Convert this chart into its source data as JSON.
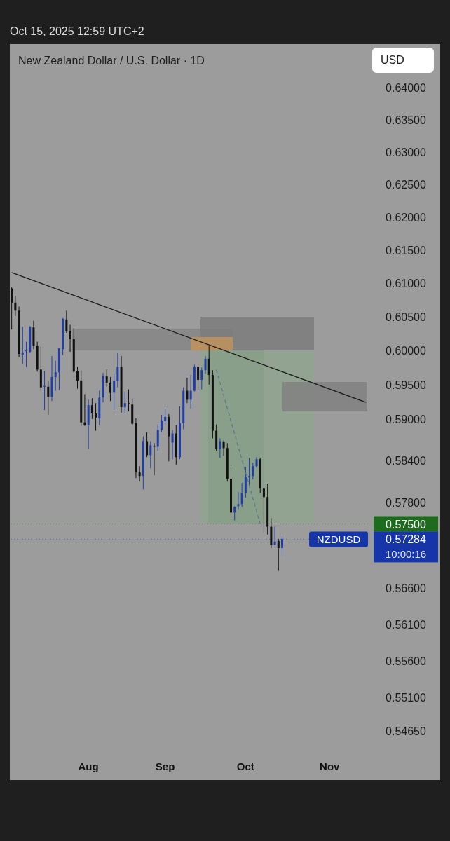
{
  "chart_data": {
    "type": "candlestick",
    "title": "New Zealand Dollar / U.S. Dollar · 1D",
    "annotations": [
      "Oct 15, 2025 12:59 UTC+2",
      "10:00:16",
      "USD"
    ],
    "categories": [
      null,
      null,
      null,
      null,
      null,
      null,
      null,
      null,
      null,
      null,
      null,
      null,
      null,
      null,
      null,
      null,
      null,
      null,
      null,
      null,
      null,
      "Aug",
      null,
      null,
      null,
      null,
      null,
      null,
      null,
      null,
      null,
      null,
      null,
      null,
      null,
      null,
      null,
      null,
      null,
      null,
      null,
      null,
      "Sep",
      null,
      null,
      null,
      null,
      null,
      null,
      null,
      null,
      null,
      null,
      null,
      null,
      null,
      null,
      null,
      null,
      null,
      null,
      null,
      null,
      null,
      "Oct",
      null,
      null,
      null,
      null,
      null,
      null,
      null,
      null,
      null,
      null,
      null,
      null,
      null,
      null,
      null,
      null,
      null,
      null,
      null,
      null,
      null,
      null,
      "Nov",
      null,
      null,
      null,
      null,
      null,
      null,
      null,
      null,
      null,
      null
    ],
    "ohlc": [
      [
        0.6092,
        0.6094,
        0.6031,
        0.6071
      ],
      [
        0.6071,
        0.6081,
        0.6051,
        0.6059
      ],
      [
        0.6059,
        0.6065,
        0.599,
        0.5995
      ],
      [
        0.5994,
        0.6035,
        0.598,
        0.5997
      ],
      [
        0.5999,
        0.6013,
        0.5976,
        0.6
      ],
      [
        0.5998,
        0.6036,
        0.5997,
        0.6035
      ],
      [
        0.6034,
        0.6044,
        0.6002,
        0.6007
      ],
      [
        0.6007,
        0.6013,
        0.5969,
        0.5972
      ],
      [
        0.5972,
        0.6006,
        0.5941,
        0.5946
      ],
      [
        0.5947,
        0.597,
        0.5913,
        0.5948
      ],
      [
        0.5947,
        0.5955,
        0.5906,
        0.5932
      ],
      [
        0.5932,
        0.5992,
        0.5926,
        0.5961
      ],
      [
        0.5961,
        0.5985,
        0.5941,
        0.5968
      ],
      [
        0.5968,
        0.6003,
        0.5942,
        0.6003
      ],
      [
        0.6002,
        0.6048,
        0.5993,
        0.6047
      ],
      [
        0.6046,
        0.6059,
        0.6026,
        0.6028
      ],
      [
        0.6028,
        0.6038,
        0.5998,
        0.6017
      ],
      [
        0.6017,
        0.6033,
        0.5967,
        0.5969
      ],
      [
        0.597,
        0.5976,
        0.5944,
        0.5956
      ],
      [
        0.5956,
        0.5971,
        0.589,
        0.5895
      ],
      [
        0.5895,
        0.5936,
        0.589,
        0.5891
      ],
      [
        0.5891,
        0.5928,
        0.5857,
        0.592
      ],
      [
        0.592,
        0.593,
        0.59,
        0.5908
      ],
      [
        0.5908,
        0.5923,
        0.5883,
        0.5902
      ],
      [
        0.5901,
        0.5941,
        0.5891,
        0.5931
      ],
      [
        0.5931,
        0.5967,
        0.5924,
        0.5962
      ],
      [
        0.5962,
        0.5972,
        0.5947,
        0.5953
      ],
      [
        0.5953,
        0.5961,
        0.5926,
        0.5938
      ],
      [
        0.5938,
        0.5966,
        0.5913,
        0.5955
      ],
      [
        0.5955,
        0.5996,
        0.5946,
        0.5976
      ],
      [
        0.5976,
        0.5992,
        0.5909,
        0.5917
      ],
      [
        0.5917,
        0.594,
        0.5908,
        0.5923
      ],
      [
        0.5923,
        0.5943,
        0.5911,
        0.5922
      ],
      [
        0.5921,
        0.593,
        0.5891,
        0.5893
      ],
      [
        0.5894,
        0.5901,
        0.5815,
        0.5823
      ],
      [
        0.5823,
        0.5832,
        0.581,
        0.5818
      ],
      [
        0.5818,
        0.5875,
        0.5799,
        0.5868
      ],
      [
        0.5868,
        0.5881,
        0.5845,
        0.5848
      ],
      [
        0.5848,
        0.5868,
        0.5829,
        0.5862
      ],
      [
        0.5861,
        0.5865,
        0.5819,
        0.586
      ],
      [
        0.586,
        0.5892,
        0.5854,
        0.5884
      ],
      [
        0.5884,
        0.5906,
        0.5881,
        0.5898
      ],
      [
        0.5897,
        0.5915,
        0.589,
        0.5903
      ],
      [
        0.5903,
        0.5907,
        0.5839,
        0.5875
      ],
      [
        0.5866,
        0.5884,
        0.5842,
        0.5879
      ],
      [
        0.5879,
        0.5891,
        0.5834,
        0.5845
      ],
      [
        0.5845,
        0.5918,
        0.5842,
        0.5894
      ],
      [
        0.5894,
        0.5946,
        0.5885,
        0.5941
      ],
      [
        0.5941,
        0.596,
        0.5923,
        0.5928
      ],
      [
        0.5928,
        0.5964,
        0.5915,
        0.5941
      ],
      [
        0.5941,
        0.5979,
        0.594,
        0.5976
      ],
      [
        0.5976,
        0.5979,
        0.5942,
        0.5957
      ],
      [
        0.5957,
        0.5975,
        0.5943,
        0.5971
      ],
      [
        0.5971,
        0.5992,
        0.5966,
        0.5988
      ],
      [
        0.5988,
        0.6007,
        0.595,
        0.5964
      ],
      [
        0.5964,
        0.5971,
        0.5872,
        0.5883
      ],
      [
        0.5883,
        0.5892,
        0.5854,
        0.5857
      ],
      [
        0.5857,
        0.5872,
        0.5844,
        0.5868
      ],
      [
        0.5867,
        0.5869,
        0.5847,
        0.5858
      ],
      [
        0.5858,
        0.5865,
        0.581,
        0.5814
      ],
      [
        0.5814,
        0.583,
        0.5759,
        0.5766
      ],
      [
        0.5766,
        0.5775,
        0.5755,
        0.5774
      ],
      [
        0.5775,
        0.5795,
        0.5771,
        0.5778
      ],
      [
        0.5778,
        0.5808,
        0.5774,
        0.5794
      ],
      [
        0.5794,
        0.5831,
        0.5787,
        0.5817
      ],
      [
        0.5816,
        0.5844,
        0.5804,
        0.5818
      ],
      [
        0.5818,
        0.5837,
        0.5813,
        0.5832
      ],
      [
        0.5832,
        0.5845,
        0.583,
        0.5842
      ],
      [
        0.5842,
        0.5844,
        0.5794,
        0.58
      ],
      [
        0.58,
        0.5802,
        0.5738,
        0.5788
      ],
      [
        0.5788,
        0.5807,
        0.5735,
        0.5746
      ],
      [
        0.5746,
        0.5758,
        0.5716,
        0.572
      ],
      [
        0.572,
        0.5746,
        0.572,
        0.5725
      ],
      [
        0.5726,
        0.5729,
        0.5684,
        0.5716
      ],
      [
        0.5716,
        0.5733,
        0.5706,
        0.5729
      ],
      null,
      null,
      null,
      null,
      null,
      null,
      null,
      null,
      null,
      null,
      null,
      null,
      null,
      null,
      null,
      null,
      null,
      null,
      null,
      null,
      null,
      null,
      null
    ],
    "colors": [
      "#111111",
      "#111111",
      "#111111",
      "#1f3ea6",
      "#1f3ea6",
      "#1f3ea6",
      "#111111",
      "#111111",
      "#111111",
      "#1f3ea6",
      "#111111",
      "#1f3ea6",
      "#1f3ea6",
      "#1f3ea6",
      "#1f3ea6",
      "#111111",
      "#111111",
      "#111111",
      "#111111",
      "#111111",
      "#111111",
      "#1f3ea6",
      "#111111",
      "#111111",
      "#1f3ea6",
      "#1f3ea6",
      "#111111",
      "#111111",
      "#1f3ea6",
      "#1f3ea6",
      "#111111",
      "#1f3ea6",
      "#111111",
      "#111111",
      "#111111",
      "#111111",
      "#1f3ea6",
      "#111111",
      "#1f3ea6",
      "#111111",
      "#1f3ea6",
      "#1f3ea6",
      "#1f3ea6",
      "#111111",
      "#1f3ea6",
      "#111111",
      "#1f3ea6",
      "#1f3ea6",
      "#111111",
      "#1f3ea6",
      "#1f3ea6",
      "#111111",
      "#1f3ea6",
      "#1f3ea6",
      "#111111",
      "#111111",
      "#111111",
      "#1f3ea6",
      "#111111",
      "#111111",
      "#111111",
      "#1f3ea6",
      "#1f3ea6",
      "#1f3ea6",
      "#1f3ea6",
      "#1f3ea6",
      "#1f3ea6",
      "#1f3ea6",
      "#111111",
      "#111111",
      "#111111",
      "#111111",
      "#1f3ea6",
      "#111111",
      "#1f3ea6",
      null,
      null,
      null,
      null,
      null,
      null,
      null,
      null,
      null,
      null,
      null,
      null,
      null,
      null,
      null,
      null,
      null,
      null,
      null,
      null,
      null,
      null,
      null
    ],
    "series": [
      {
        "type": "line",
        "color": "#1a1a1a",
        "line_style": "solid",
        "values": [
          0.6116,
          null,
          null,
          null,
          null,
          null,
          null,
          null,
          null,
          null,
          null,
          null,
          null,
          null,
          null,
          null,
          null,
          null,
          null,
          null,
          null,
          null,
          null,
          null,
          null,
          null,
          null,
          null,
          null,
          null,
          null,
          null,
          null,
          null,
          null,
          null,
          null,
          null,
          null,
          null,
          null,
          null,
          null,
          null,
          null,
          null,
          null,
          null,
          null,
          null,
          null,
          null,
          null,
          null,
          null,
          null,
          null,
          null,
          null,
          null,
          null,
          null,
          null,
          null,
          null,
          null,
          null,
          null,
          null,
          null,
          null,
          null,
          null,
          null,
          null,
          null,
          null,
          null,
          null,
          null,
          null,
          null,
          null,
          null,
          null,
          null,
          null,
          null,
          null,
          null,
          null,
          null,
          null,
          null,
          null,
          null,
          null,
          0.5924
        ]
      },
      {
        "type": "line",
        "color": "#5f7590",
        "line_style": "dashed",
        "values": [
          null,
          null,
          null,
          null,
          null,
          null,
          null,
          null,
          null,
          null,
          null,
          null,
          null,
          null,
          null,
          null,
          null,
          null,
          null,
          null,
          null,
          null,
          null,
          null,
          null,
          null,
          null,
          null,
          null,
          null,
          null,
          null,
          null,
          null,
          null,
          null,
          null,
          null,
          null,
          null,
          null,
          null,
          null,
          null,
          null,
          null,
          null,
          null,
          null,
          null,
          null,
          null,
          null,
          null,
          null,
          null,
          0.5972,
          null,
          null,
          null,
          null,
          null,
          null,
          null,
          null,
          null,
          null,
          null,
          0.575,
          null,
          null,
          null,
          null,
          null,
          null,
          null,
          null,
          null,
          null,
          null,
          null,
          null,
          null,
          null,
          null,
          null,
          null,
          null,
          null,
          null,
          null,
          null,
          null,
          null,
          null,
          null,
          null,
          null
        ]
      }
    ],
    "ylim": [
      0.5465,
      0.64
    ],
    "log": true,
    "yticks": [
      {
        "value": 0.64,
        "label": "0.64000"
      },
      {
        "value": 0.635,
        "label": "0.63500"
      },
      {
        "value": 0.63,
        "label": "0.63000"
      },
      {
        "value": 0.625,
        "label": "0.62500"
      },
      {
        "value": 0.62,
        "label": "0.62000"
      },
      {
        "value": 0.615,
        "label": "0.61500"
      },
      {
        "value": 0.61,
        "label": "0.61000"
      },
      {
        "value": 0.605,
        "label": "0.60500"
      },
      {
        "value": 0.6,
        "label": "0.60000"
      },
      {
        "value": 0.595,
        "label": "0.59500"
      },
      {
        "value": 0.59,
        "label": "0.59000"
      },
      {
        "value": 0.584,
        "label": "0.58400"
      },
      {
        "value": 0.578,
        "label": "0.57800"
      },
      {
        "value": 0.575,
        "label": "0.57500"
      },
      0.57284,
      {
        "value": 0.566,
        "label": "0.56600"
      },
      {
        "value": 0.561,
        "label": "0.56100"
      },
      {
        "value": 0.556,
        "label": "0.55600"
      },
      {
        "value": 0.551,
        "label": "0.55100"
      },
      {
        "value": 0.5465,
        "label": "0.54650"
      }
    ],
    "ref_lines": [
      {
        "axis": "y",
        "value": 0.575,
        "color": "#1d6b1d",
        "line_style": "dotted"
      },
      {
        "axis": "y",
        "value": 0.57284,
        "label": "NZDUSD",
        "color": "#1535a8",
        "line_style": "dotted"
      }
    ]
  }
}
